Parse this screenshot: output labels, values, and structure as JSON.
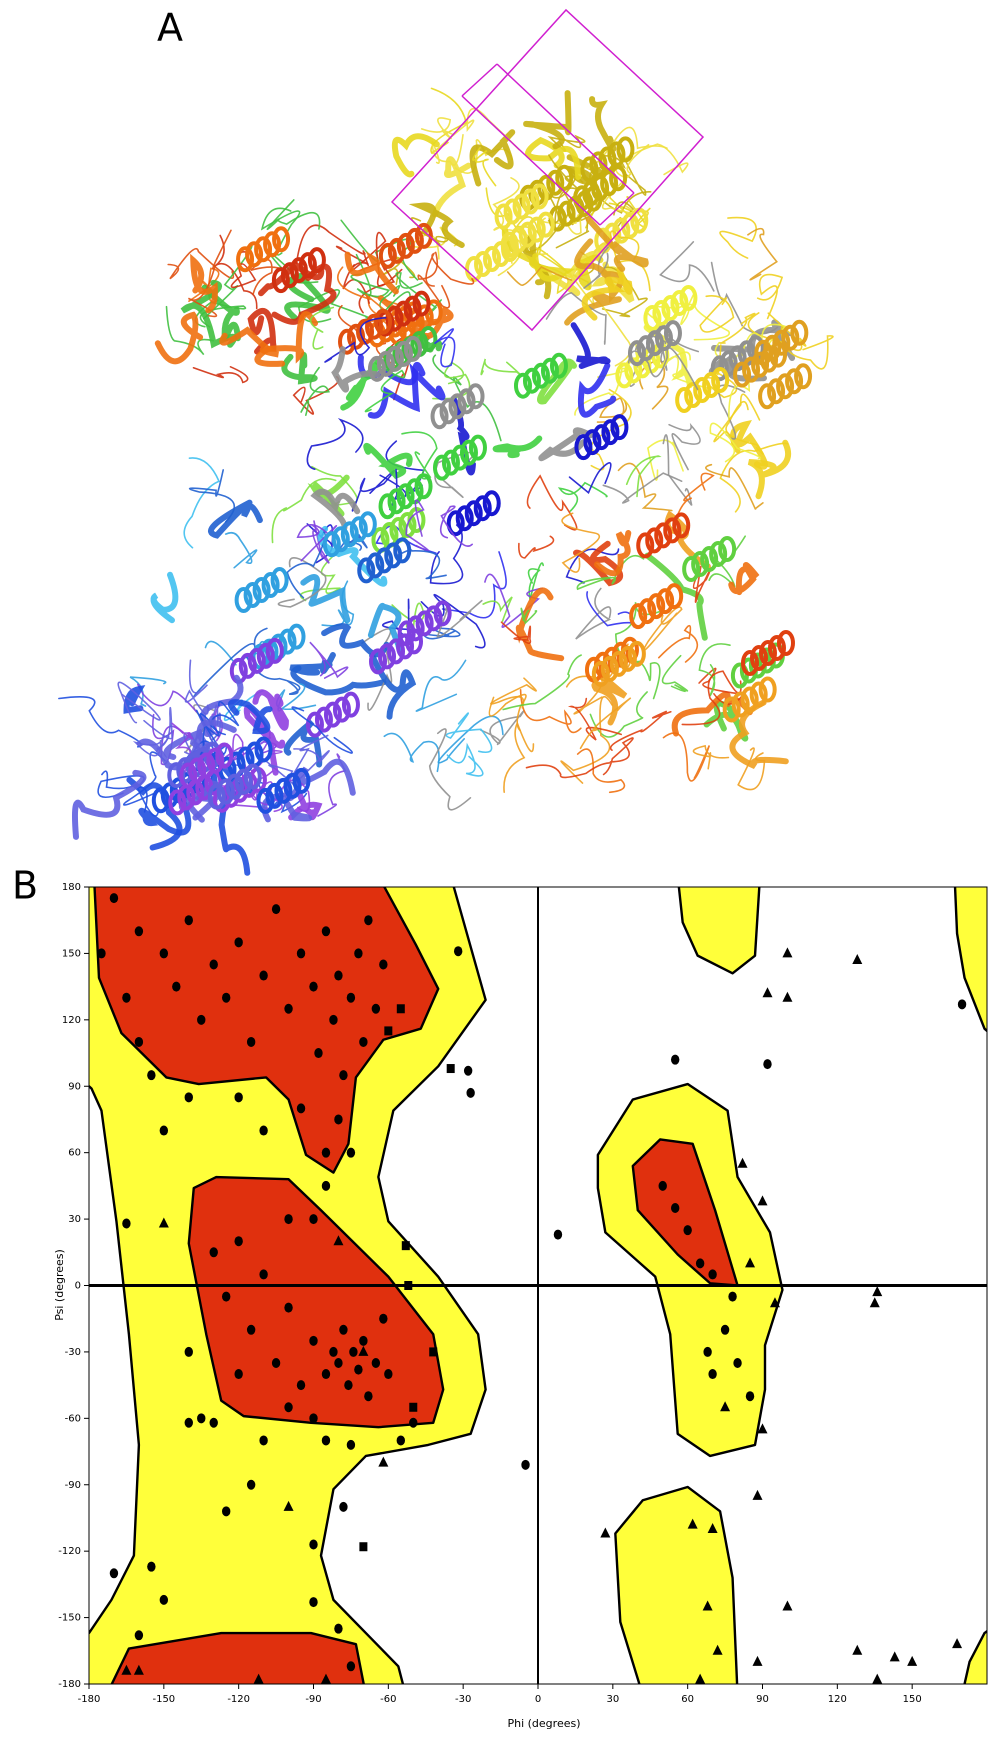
{
  "panel_labels": [
    "A",
    "B"
  ],
  "chart_data": {
    "type": "scatter",
    "xlabel": "Phi (degrees)",
    "ylabel": "Psi (degrees)",
    "xlim": [
      -180,
      180
    ],
    "ylim": [
      -180,
      180
    ],
    "xticks": [
      -180,
      -150,
      -120,
      -90,
      -60,
      -30,
      0,
      30,
      60,
      90,
      120,
      150
    ],
    "yticks": [
      -180,
      -150,
      -120,
      -90,
      -60,
      -30,
      0,
      30,
      60,
      90,
      120,
      150,
      180
    ],
    "series": [
      {
        "marker": "circle",
        "color": "#000000",
        "x": [
          -170,
          -160,
          -150,
          -145,
          -140,
          -135,
          -130,
          -125,
          -120,
          -115,
          -110,
          -105,
          -100,
          -95,
          -90,
          -88,
          -85,
          -82,
          -80,
          -78,
          -75,
          -72,
          -70,
          -68,
          -65,
          -62,
          -160,
          -155,
          -150,
          -140,
          -120,
          -110,
          -95,
          -85,
          -80,
          -75,
          -165,
          -175,
          -85,
          -90,
          -100,
          -32,
          -28,
          -27,
          170,
          8,
          55,
          92,
          -5,
          -165,
          -130,
          -115,
          -125,
          -78,
          -90,
          -170,
          -155,
          -150,
          -160,
          -90,
          -80,
          -75,
          -130,
          -125,
          -120,
          -115,
          -110,
          -105,
          -100,
          -95,
          -90,
          -85,
          -82,
          -80,
          -78,
          -76,
          -74,
          -72,
          -70,
          -68,
          -65,
          -62,
          -60,
          -90,
          -100,
          -120,
          -140,
          -140,
          -135,
          -110,
          -85,
          -75,
          -55,
          -50,
          50,
          55,
          60,
          65,
          70,
          75,
          80,
          85,
          70,
          78,
          68
        ],
        "y": [
          175,
          160,
          150,
          135,
          165,
          120,
          145,
          130,
          155,
          110,
          140,
          170,
          125,
          150,
          135,
          105,
          160,
          120,
          140,
          95,
          130,
          150,
          110,
          165,
          125,
          145,
          110,
          95,
          70,
          85,
          85,
          70,
          80,
          60,
          75,
          60,
          130,
          150,
          45,
          30,
          30,
          151,
          97,
          87,
          127,
          23,
          102,
          100,
          -81,
          28,
          -62,
          -90,
          -102,
          -100,
          -117,
          -130,
          -127,
          -142,
          -158,
          -143,
          -155,
          -172,
          15,
          -5,
          20,
          -20,
          5,
          -35,
          -10,
          -45,
          -25,
          -40,
          -30,
          -35,
          -20,
          -45,
          -30,
          -38,
          -25,
          -50,
          -35,
          -15,
          -40,
          -60,
          -55,
          -40,
          -30,
          -62,
          -60,
          -70,
          -70,
          -72,
          -70,
          -62,
          45,
          35,
          25,
          10,
          5,
          -20,
          -35,
          -50,
          -40,
          -5,
          -30
        ]
      },
      {
        "marker": "triangle",
        "color": "#000000",
        "x": [
          -150,
          -100,
          -62,
          -165,
          -160,
          -112,
          -85,
          100,
          92,
          100,
          128,
          82,
          90,
          85,
          95,
          75,
          90,
          88,
          62,
          70,
          27,
          68,
          100,
          72,
          88,
          128,
          143,
          150,
          136,
          168,
          135,
          136,
          65,
          -80,
          -70
        ],
        "y": [
          28,
          -100,
          -80,
          -174,
          -174,
          -178,
          -178,
          150,
          132,
          130,
          147,
          55,
          38,
          10,
          -8,
          -55,
          -65,
          -95,
          -108,
          -110,
          -112,
          -145,
          -145,
          -165,
          -170,
          -165,
          -168,
          -170,
          -178,
          -162,
          -8,
          -3,
          -178,
          20,
          -30
        ]
      },
      {
        "marker": "square",
        "color": "#000000",
        "x": [
          -35,
          -53,
          -50,
          -70,
          -60,
          -55,
          -42,
          -52
        ],
        "y": [
          98,
          18,
          -55,
          -118,
          115,
          125,
          -30,
          0
        ]
      }
    ],
    "grid": false
  }
}
